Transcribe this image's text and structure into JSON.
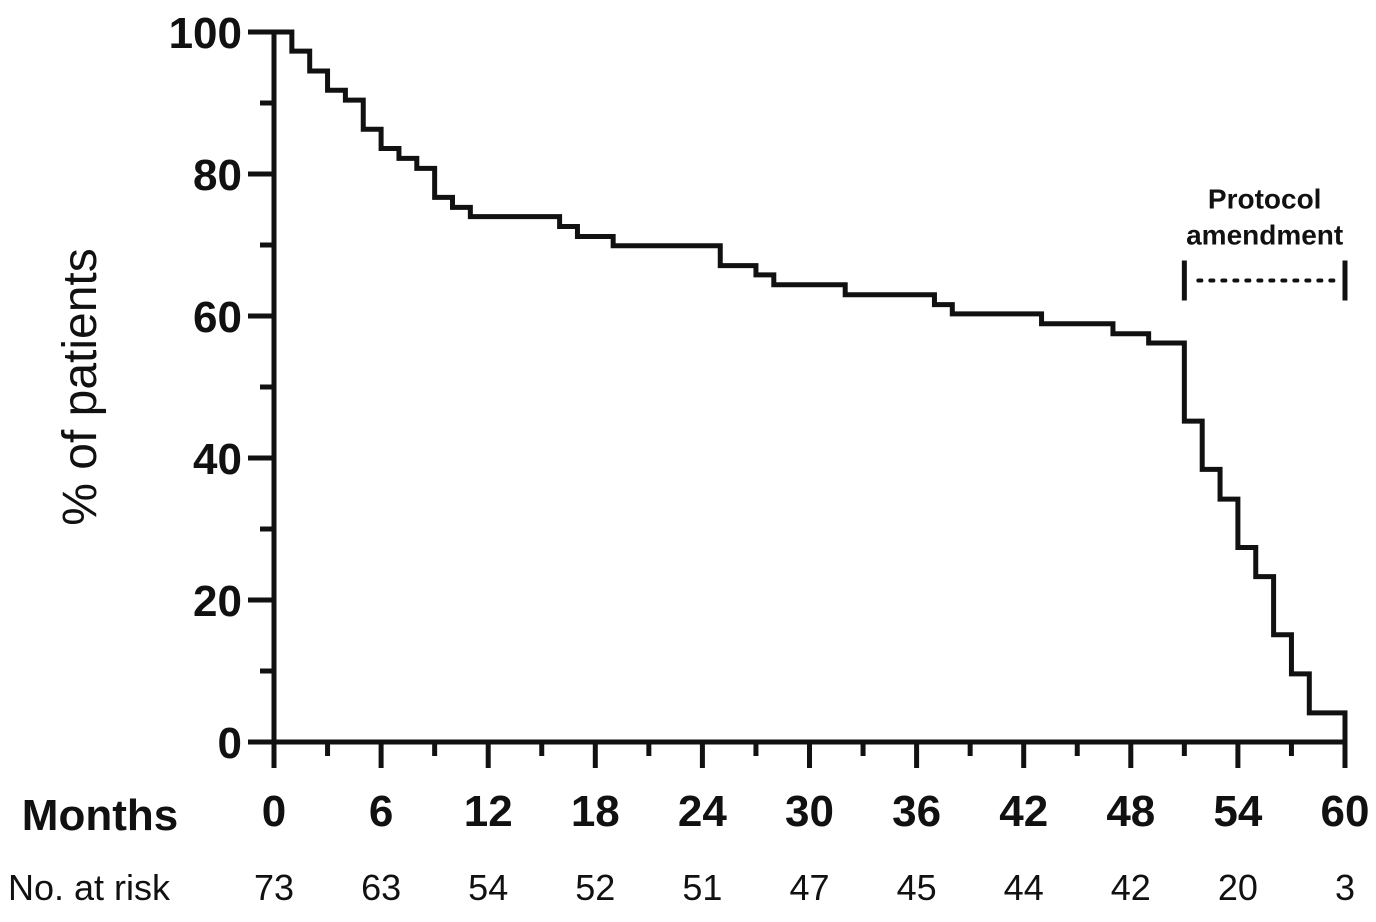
{
  "chart_data": {
    "type": "line",
    "step": true,
    "ylabel": "% of patients",
    "xlabel": "Months",
    "xlim": [
      0,
      60
    ],
    "ylim": [
      0,
      100
    ],
    "x_ticks": [
      0,
      6,
      12,
      18,
      24,
      30,
      36,
      42,
      48,
      54,
      60
    ],
    "y_ticks": [
      0,
      20,
      40,
      60,
      80,
      100
    ],
    "grid": false,
    "series": [
      {
        "x": [
          0,
          1,
          2,
          3,
          4,
          5,
          6,
          7,
          8,
          9,
          10,
          11,
          16,
          17,
          19,
          25,
          27,
          28,
          32,
          37,
          38,
          43,
          47,
          49,
          51,
          52,
          53,
          54,
          55,
          56,
          57,
          58,
          60
        ],
        "y": [
          100,
          97.3,
          94.5,
          91.8,
          90.4,
          86.3,
          83.6,
          82.2,
          80.8,
          76.7,
          75.3,
          74,
          72.6,
          71.2,
          69.9,
          67.1,
          65.8,
          64.4,
          63,
          61.6,
          60.3,
          58.9,
          57.5,
          56.2,
          45.2,
          38.4,
          34.2,
          27.4,
          23.3,
          15.1,
          9.6,
          4.1,
          0
        ]
      }
    ],
    "risk_table": {
      "label": "No. at risk",
      "values": [
        "73",
        "63",
        "54",
        "52",
        "51",
        "47",
        "45",
        "44",
        "42",
        "20",
        "3"
      ]
    },
    "annotation": {
      "line1": "Protocol",
      "line2": "amendment",
      "from_month": 51,
      "to_month": 60,
      "at_percent": 65
    }
  }
}
